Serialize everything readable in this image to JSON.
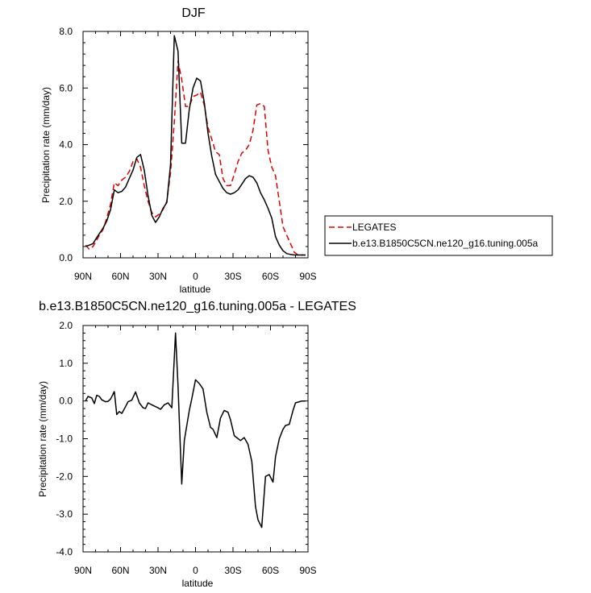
{
  "chart_data": [
    {
      "type": "line",
      "title": "DJF",
      "xlabel": "latitude",
      "ylabel": "Precipitation rate (mm/day)",
      "xlim": [
        -90,
        90
      ],
      "ylim": [
        0,
        8
      ],
      "xticks": [
        -90,
        -60,
        -30,
        0,
        30,
        60,
        90
      ],
      "xtick_labels": [
        "90N",
        "60N",
        "30N",
        "0",
        "30S",
        "60S",
        "90S"
      ],
      "yticks": [
        0,
        2,
        4,
        6,
        8
      ],
      "ytick_labels": [
        "0.0",
        "2.0",
        "4.0",
        "6.0",
        "8.0"
      ],
      "legend_position": "right",
      "series": [
        {
          "name": "LEGATES",
          "color": "#dd0000",
          "dash": "dashed",
          "x": [
            -88,
            -85,
            -82,
            -80,
            -77,
            -74,
            -71,
            -68,
            -65,
            -62,
            -59,
            -56,
            -53,
            -50,
            -47,
            -44,
            -41,
            -38,
            -35,
            -32,
            -29,
            -26,
            -23,
            -20,
            -17,
            -14,
            -11,
            -8,
            -5,
            -2,
            1,
            4,
            7,
            10,
            13,
            16,
            19,
            22,
            25,
            28,
            31,
            34,
            37,
            40,
            43,
            46,
            49,
            52,
            55,
            58,
            61,
            64,
            67,
            70,
            73,
            76,
            79,
            82,
            85,
            88
          ],
          "y": [
            0.45,
            0.3,
            0.4,
            0.55,
            0.8,
            1.0,
            1.4,
            1.9,
            2.65,
            2.55,
            2.75,
            2.85,
            3.05,
            3.4,
            3.5,
            3.2,
            2.55,
            2.0,
            1.6,
            1.45,
            1.55,
            1.7,
            2.0,
            3.0,
            4.8,
            6.95,
            6.3,
            5.35,
            5.35,
            5.7,
            5.75,
            5.85,
            5.4,
            4.6,
            4.2,
            3.75,
            3.65,
            2.8,
            2.55,
            2.55,
            2.95,
            3.4,
            3.7,
            3.8,
            4.0,
            4.5,
            5.4,
            5.45,
            5.35,
            3.8,
            3.2,
            2.9,
            2.0,
            1.1,
            0.8,
            0.5,
            0.2,
            0.1,
            0.1,
            0.1
          ]
        },
        {
          "name": "b.e13.B1850C5CN.ne120_g16.tuning.005a",
          "color": "#000000",
          "dash": "solid",
          "x": [
            -88,
            -85,
            -82,
            -80,
            -77,
            -74,
            -71,
            -68,
            -65,
            -62,
            -59,
            -56,
            -53,
            -50,
            -47,
            -44,
            -41,
            -38,
            -35,
            -32,
            -29,
            -26,
            -23,
            -20,
            -17,
            -14,
            -11,
            -8,
            -5,
            -2,
            1,
            4,
            7,
            10,
            13,
            16,
            19,
            22,
            25,
            28,
            31,
            34,
            37,
            40,
            43,
            46,
            49,
            52,
            55,
            58,
            61,
            64,
            67,
            70,
            73,
            76,
            79,
            82,
            85,
            88
          ],
          "y": [
            0.4,
            0.45,
            0.5,
            0.65,
            0.85,
            1.05,
            1.3,
            1.7,
            2.4,
            2.3,
            2.35,
            2.5,
            2.8,
            3.1,
            3.55,
            3.65,
            3.1,
            2.2,
            1.5,
            1.25,
            1.45,
            1.75,
            1.95,
            3.3,
            7.85,
            7.3,
            4.05,
            4.05,
            5.25,
            6.0,
            6.35,
            6.25,
            5.5,
            4.4,
            3.6,
            2.95,
            2.7,
            2.45,
            2.3,
            2.25,
            2.3,
            2.4,
            2.6,
            2.8,
            2.9,
            2.85,
            2.65,
            2.3,
            2.05,
            1.75,
            1.4,
            0.75,
            0.45,
            0.25,
            0.15,
            0.12,
            0.1,
            0.1,
            0.1,
            0.1
          ]
        }
      ]
    },
    {
      "type": "line",
      "title": "b.e13.B1850C5CN.ne120_g16.tuning.005a - LEGATES",
      "xlabel": "latitude",
      "ylabel": "Precipitation rate (mm/day)",
      "xlim": [
        -90,
        90
      ],
      "ylim": [
        -4,
        2
      ],
      "xticks": [
        -90,
        -60,
        -30,
        0,
        30,
        60,
        90
      ],
      "xtick_labels": [
        "90N",
        "60N",
        "30N",
        "0",
        "30S",
        "60S",
        "90S"
      ],
      "yticks": [
        -4,
        -3,
        -2,
        -1,
        0,
        1,
        2
      ],
      "ytick_labels": [
        "-4.0",
        "-3.0",
        "-2.0",
        "-1.0",
        "0.0",
        "1.0",
        "2.0"
      ],
      "series": [
        {
          "color": "#000000",
          "dash": "solid",
          "x": [
            -88,
            -86,
            -83,
            -81,
            -79,
            -77,
            -75,
            -72,
            -70,
            -68,
            -65,
            -63,
            -61,
            -59,
            -56,
            -54,
            -51,
            -48,
            -45,
            -42,
            -40,
            -38,
            -35,
            -32,
            -30,
            -28,
            -25,
            -22,
            -19,
            -16,
            -14,
            -11,
            -9,
            -5,
            -3,
            0,
            3,
            6,
            9,
            12,
            14,
            17,
            20,
            23,
            26,
            28,
            31,
            33,
            36,
            39,
            42,
            45,
            48,
            50,
            53,
            56,
            59,
            62,
            64,
            67,
            70,
            72,
            75,
            78,
            80,
            83,
            85,
            88
          ],
          "y": [
            0.0,
            0.12,
            0.08,
            -0.07,
            0.15,
            0.12,
            0.03,
            -0.02,
            -0.01,
            0.05,
            0.25,
            -0.36,
            -0.28,
            -0.33,
            -0.15,
            -0.02,
            0.02,
            0.24,
            -0.05,
            -0.18,
            -0.2,
            -0.05,
            -0.1,
            -0.15,
            -0.18,
            -0.22,
            -0.1,
            -0.05,
            -0.18,
            1.8,
            0.4,
            -2.2,
            -1.05,
            -0.25,
            0.05,
            0.56,
            0.46,
            0.32,
            -0.3,
            -0.7,
            -0.75,
            -0.97,
            -0.45,
            -0.25,
            -0.3,
            -0.5,
            -0.92,
            -0.97,
            -1.05,
            -0.97,
            -1.15,
            -1.6,
            -2.8,
            -3.15,
            -3.35,
            -2.0,
            -1.95,
            -2.15,
            -1.48,
            -1.0,
            -0.75,
            -0.65,
            -0.62,
            -0.25,
            -0.05,
            -0.02,
            0.0,
            0.0
          ]
        }
      ]
    }
  ]
}
